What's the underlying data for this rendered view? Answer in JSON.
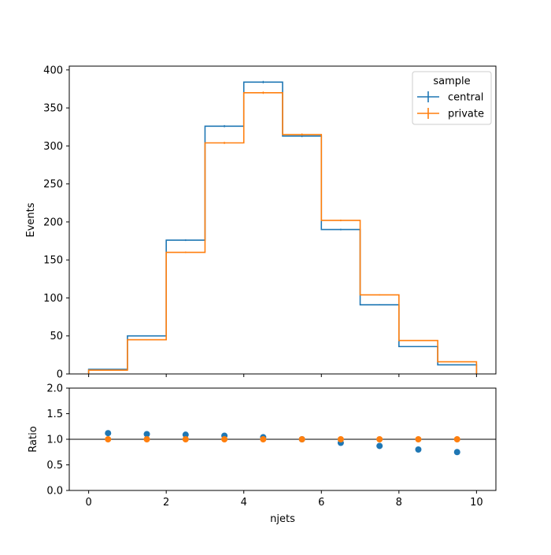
{
  "chart_data": [
    {
      "type": "step",
      "xlim": [
        -0.5,
        10.5
      ],
      "ylim": [
        0,
        405
      ],
      "ylabel": "Events",
      "xlabel": "",
      "yticks": [
        0,
        50,
        100,
        150,
        200,
        250,
        300,
        350,
        400
      ],
      "xticks": [
        0,
        2,
        4,
        6,
        8,
        10
      ],
      "show_x_tick_labels": false,
      "bin_edges": [
        0,
        1,
        2,
        3,
        4,
        5,
        6,
        7,
        8,
        9,
        10
      ],
      "series": [
        {
          "name": "central",
          "color": "#1f77b4",
          "values": [
            6,
            50,
            176,
            326,
            384,
            313,
            190,
            91,
            36,
            12
          ]
        },
        {
          "name": "private",
          "color": "#ff7f0e",
          "values": [
            5,
            45,
            160,
            304,
            370,
            315,
            202,
            104,
            44,
            16
          ]
        }
      ],
      "legend": {
        "title": "sample",
        "position": "top-right"
      }
    },
    {
      "type": "scatter",
      "xlim": [
        -0.5,
        10.5
      ],
      "ylim": [
        0,
        2
      ],
      "ylabel": "Ratio",
      "xlabel": "njets",
      "yticks": [
        0.0,
        0.5,
        1.0,
        1.5,
        2.0
      ],
      "ytick_labels": [
        "0.0",
        "0.5",
        "1.0",
        "1.5",
        "2.0"
      ],
      "xticks": [
        0,
        2,
        4,
        6,
        8,
        10
      ],
      "reference_line": 1.0,
      "x": [
        0.5,
        1.5,
        2.5,
        3.5,
        4.5,
        5.5,
        6.5,
        7.5,
        8.5,
        9.5
      ],
      "series": [
        {
          "name": "central",
          "color": "#1f77b4",
          "values": [
            1.12,
            1.1,
            1.09,
            1.07,
            1.04,
            1.0,
            0.93,
            0.87,
            0.8,
            0.75
          ]
        },
        {
          "name": "private",
          "color": "#ff7f0e",
          "values": [
            1.0,
            1.0,
            1.0,
            1.0,
            1.0,
            1.0,
            1.0,
            1.0,
            1.0,
            1.0
          ]
        }
      ]
    }
  ]
}
